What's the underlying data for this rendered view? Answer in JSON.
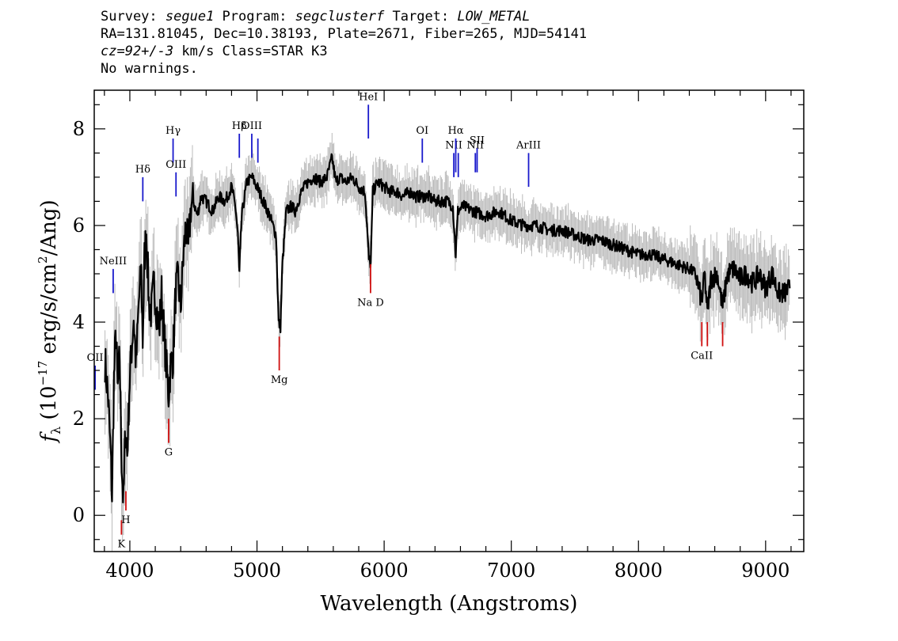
{
  "header": {
    "survey_label": "Survey: ",
    "survey": "segue1",
    "program_label": " Program: ",
    "program": "segclusterf",
    "target_label": " Target: ",
    "target": "LOW_METAL",
    "coords": "RA=131.81045, Dec=10.38193, Plate=2671, Fiber=265, MJD=54141",
    "cz_value": "cz=92+/-3",
    "cz_rest": " km/s Class=STAR K3",
    "warnings": "No warnings."
  },
  "chart_data": {
    "type": "line",
    "title": "",
    "xlabel": "Wavelength (Angstroms)",
    "ylabel_prefix": "f",
    "ylabel_sub": "λ",
    "ylabel_main": " (10",
    "ylabel_exp": "−17",
    "ylabel_units": " erg/s/cm",
    "ylabel_exp2": "2",
    "ylabel_tail": "/Ang)",
    "xlim": [
      3720,
      9300
    ],
    "ylim": [
      -0.75,
      8.8
    ],
    "xticks": [
      4000,
      5000,
      6000,
      7000,
      8000,
      9000
    ],
    "yticks": [
      0,
      2,
      4,
      6,
      8
    ],
    "grid": false,
    "colors": {
      "flux": "#000000",
      "error": "#bbbbbb",
      "emission": "#1a1acc",
      "absorption": "#d01010"
    },
    "flux": [
      [
        3805,
        3.2
      ],
      [
        3830,
        2.4
      ],
      [
        3850,
        1.2
      ],
      [
        3860,
        0.4
      ],
      [
        3875,
        2.8
      ],
      [
        3890,
        3.8
      ],
      [
        3905,
        2.6
      ],
      [
        3920,
        3.3
      ],
      [
        3935,
        1.2
      ],
      [
        3950,
        0.2
      ],
      [
        3965,
        1.8
      ],
      [
        3980,
        1.3
      ],
      [
        3995,
        2.6
      ],
      [
        4010,
        3.3
      ],
      [
        4030,
        4.1
      ],
      [
        4050,
        3.1
      ],
      [
        4070,
        4.4
      ],
      [
        4090,
        5.0
      ],
      [
        4101,
        3.6
      ],
      [
        4115,
        5.3
      ],
      [
        4130,
        5.9
      ],
      [
        4150,
        4.4
      ],
      [
        4170,
        4.2
      ],
      [
        4190,
        4.8
      ],
      [
        4210,
        4.3
      ],
      [
        4230,
        3.8
      ],
      [
        4250,
        4.6
      ],
      [
        4270,
        3.7
      ],
      [
        4290,
        3.0
      ],
      [
        4305,
        2.5
      ],
      [
        4320,
        3.1
      ],
      [
        4340,
        3.3
      ],
      [
        4360,
        4.6
      ],
      [
        4380,
        4.9
      ],
      [
        4400,
        4.3
      ],
      [
        4420,
        5.3
      ],
      [
        4440,
        6.0
      ],
      [
        4460,
        5.5
      ],
      [
        4480,
        6.4
      ],
      [
        4500,
        6.5
      ],
      [
        4530,
        6.2
      ],
      [
        4560,
        6.6
      ],
      [
        4600,
        6.5
      ],
      [
        4650,
        6.3
      ],
      [
        4700,
        6.6
      ],
      [
        4750,
        6.5
      ],
      [
        4800,
        6.8
      ],
      [
        4830,
        6.4
      ],
      [
        4850,
        5.8
      ],
      [
        4861,
        5.0
      ],
      [
        4880,
        6.2
      ],
      [
        4920,
        6.9
      ],
      [
        4960,
        7.0
      ],
      [
        5000,
        6.8
      ],
      [
        5050,
        6.5
      ],
      [
        5100,
        6.2
      ],
      [
        5150,
        5.8
      ],
      [
        5170,
        4.0
      ],
      [
        5185,
        3.9
      ],
      [
        5200,
        5.2
      ],
      [
        5230,
        6.3
      ],
      [
        5270,
        6.4
      ],
      [
        5300,
        6.3
      ],
      [
        5350,
        6.7
      ],
      [
        5400,
        6.9
      ],
      [
        5450,
        7.0
      ],
      [
        5500,
        6.9
      ],
      [
        5550,
        7.0
      ],
      [
        5590,
        7.4
      ],
      [
        5620,
        6.9
      ],
      [
        5650,
        7.0
      ],
      [
        5700,
        6.9
      ],
      [
        5750,
        7.0
      ],
      [
        5800,
        6.8
      ],
      [
        5850,
        6.7
      ],
      [
        5880,
        5.3
      ],
      [
        5895,
        5.2
      ],
      [
        5910,
        6.7
      ],
      [
        5950,
        6.9
      ],
      [
        6000,
        6.8
      ],
      [
        6050,
        6.7
      ],
      [
        6100,
        6.7
      ],
      [
        6150,
        6.6
      ],
      [
        6200,
        6.7
      ],
      [
        6250,
        6.6
      ],
      [
        6300,
        6.6
      ],
      [
        6350,
        6.6
      ],
      [
        6400,
        6.5
      ],
      [
        6450,
        6.5
      ],
      [
        6500,
        6.5
      ],
      [
        6540,
        6.4
      ],
      [
        6563,
        5.4
      ],
      [
        6580,
        6.3
      ],
      [
        6620,
        6.4
      ],
      [
        6700,
        6.3
      ],
      [
        6800,
        6.2
      ],
      [
        6900,
        6.3
      ],
      [
        7000,
        6.1
      ],
      [
        7100,
        6.0
      ],
      [
        7200,
        6.0
      ],
      [
        7300,
        5.9
      ],
      [
        7400,
        5.9
      ],
      [
        7500,
        5.8
      ],
      [
        7600,
        5.7
      ],
      [
        7700,
        5.7
      ],
      [
        7800,
        5.6
      ],
      [
        7900,
        5.5
      ],
      [
        8000,
        5.4
      ],
      [
        8100,
        5.4
      ],
      [
        8200,
        5.3
      ],
      [
        8300,
        5.2
      ],
      [
        8400,
        5.1
      ],
      [
        8450,
        5.0
      ],
      [
        8498,
        4.4
      ],
      [
        8520,
        5.0
      ],
      [
        8542,
        4.2
      ],
      [
        8570,
        4.9
      ],
      [
        8620,
        5.0
      ],
      [
        8662,
        4.3
      ],
      [
        8700,
        5.0
      ],
      [
        8750,
        5.1
      ],
      [
        8800,
        4.9
      ],
      [
        8850,
        5.0
      ],
      [
        8900,
        4.8
      ],
      [
        8950,
        5.0
      ],
      [
        9000,
        4.7
      ],
      [
        9050,
        5.0
      ],
      [
        9100,
        4.6
      ],
      [
        9150,
        4.6
      ],
      [
        9190,
        4.7
      ]
    ],
    "error_band": 0.45,
    "emission_lines": [
      {
        "name": "OII",
        "x": 3727,
        "y_top": 3.1,
        "y_bot": 2.6
      },
      {
        "name": "NeIII",
        "x": 3869,
        "y_top": 5.1,
        "y_bot": 4.6
      },
      {
        "name": "Hδ",
        "x": 4102,
        "y_top": 7.0,
        "y_bot": 6.5
      },
      {
        "name": "Hγ",
        "x": 4340,
        "y_top": 7.8,
        "y_bot": 7.3
      },
      {
        "name": "OIII",
        "x": 4363,
        "y_top": 7.1,
        "y_bot": 6.6
      },
      {
        "name": "Hβ",
        "x": 4861,
        "y_top": 7.9,
        "y_bot": 7.4
      },
      {
        "name": "OIII",
        "x": 4959,
        "y_top": 7.9,
        "y_bot": 7.4
      },
      {
        "name": "",
        "x": 5007,
        "y_top": 7.8,
        "y_bot": 7.3
      },
      {
        "name": "HeI",
        "x": 5876,
        "y_top": 8.5,
        "y_bot": 7.8
      },
      {
        "name": "OI",
        "x": 6300,
        "y_top": 7.8,
        "y_bot": 7.3
      },
      {
        "name": "NII",
        "x": 6548,
        "y_top": 7.5,
        "y_bot": 7.0
      },
      {
        "name": "Hα",
        "x": 6563,
        "y_top": 7.8,
        "y_bot": 7.1
      },
      {
        "name": "",
        "x": 6583,
        "y_top": 7.5,
        "y_bot": 7.0
      },
      {
        "name": "NII",
        "x": 6717,
        "y_top": 7.5,
        "y_bot": 7.1
      },
      {
        "name": "SII",
        "x": 6731,
        "y_top": 7.6,
        "y_bot": 7.1
      },
      {
        "name": "ArIII",
        "x": 7136,
        "y_top": 7.5,
        "y_bot": 6.8
      }
    ],
    "absorption_lines": [
      {
        "name": "K",
        "x": 3934,
        "y_top": -0.1,
        "y_bot": -0.4
      },
      {
        "name": "H",
        "x": 3969,
        "y_top": 0.5,
        "y_bot": 0.1
      },
      {
        "name": "G",
        "x": 4305,
        "y_top": 2.0,
        "y_bot": 1.5
      },
      {
        "name": "Mg",
        "x": 5175,
        "y_top": 3.7,
        "y_bot": 3.0
      },
      {
        "name": "Na D",
        "x": 5893,
        "y_top": 5.2,
        "y_bot": 4.6
      },
      {
        "name": "CaII",
        "x": 8498,
        "y_top": 4.0,
        "y_bot": 3.5
      },
      {
        "name": "",
        "x": 8542,
        "y_top": 4.0,
        "y_bot": 3.5
      },
      {
        "name": "",
        "x": 8662,
        "y_top": 4.0,
        "y_bot": 3.5
      }
    ]
  }
}
